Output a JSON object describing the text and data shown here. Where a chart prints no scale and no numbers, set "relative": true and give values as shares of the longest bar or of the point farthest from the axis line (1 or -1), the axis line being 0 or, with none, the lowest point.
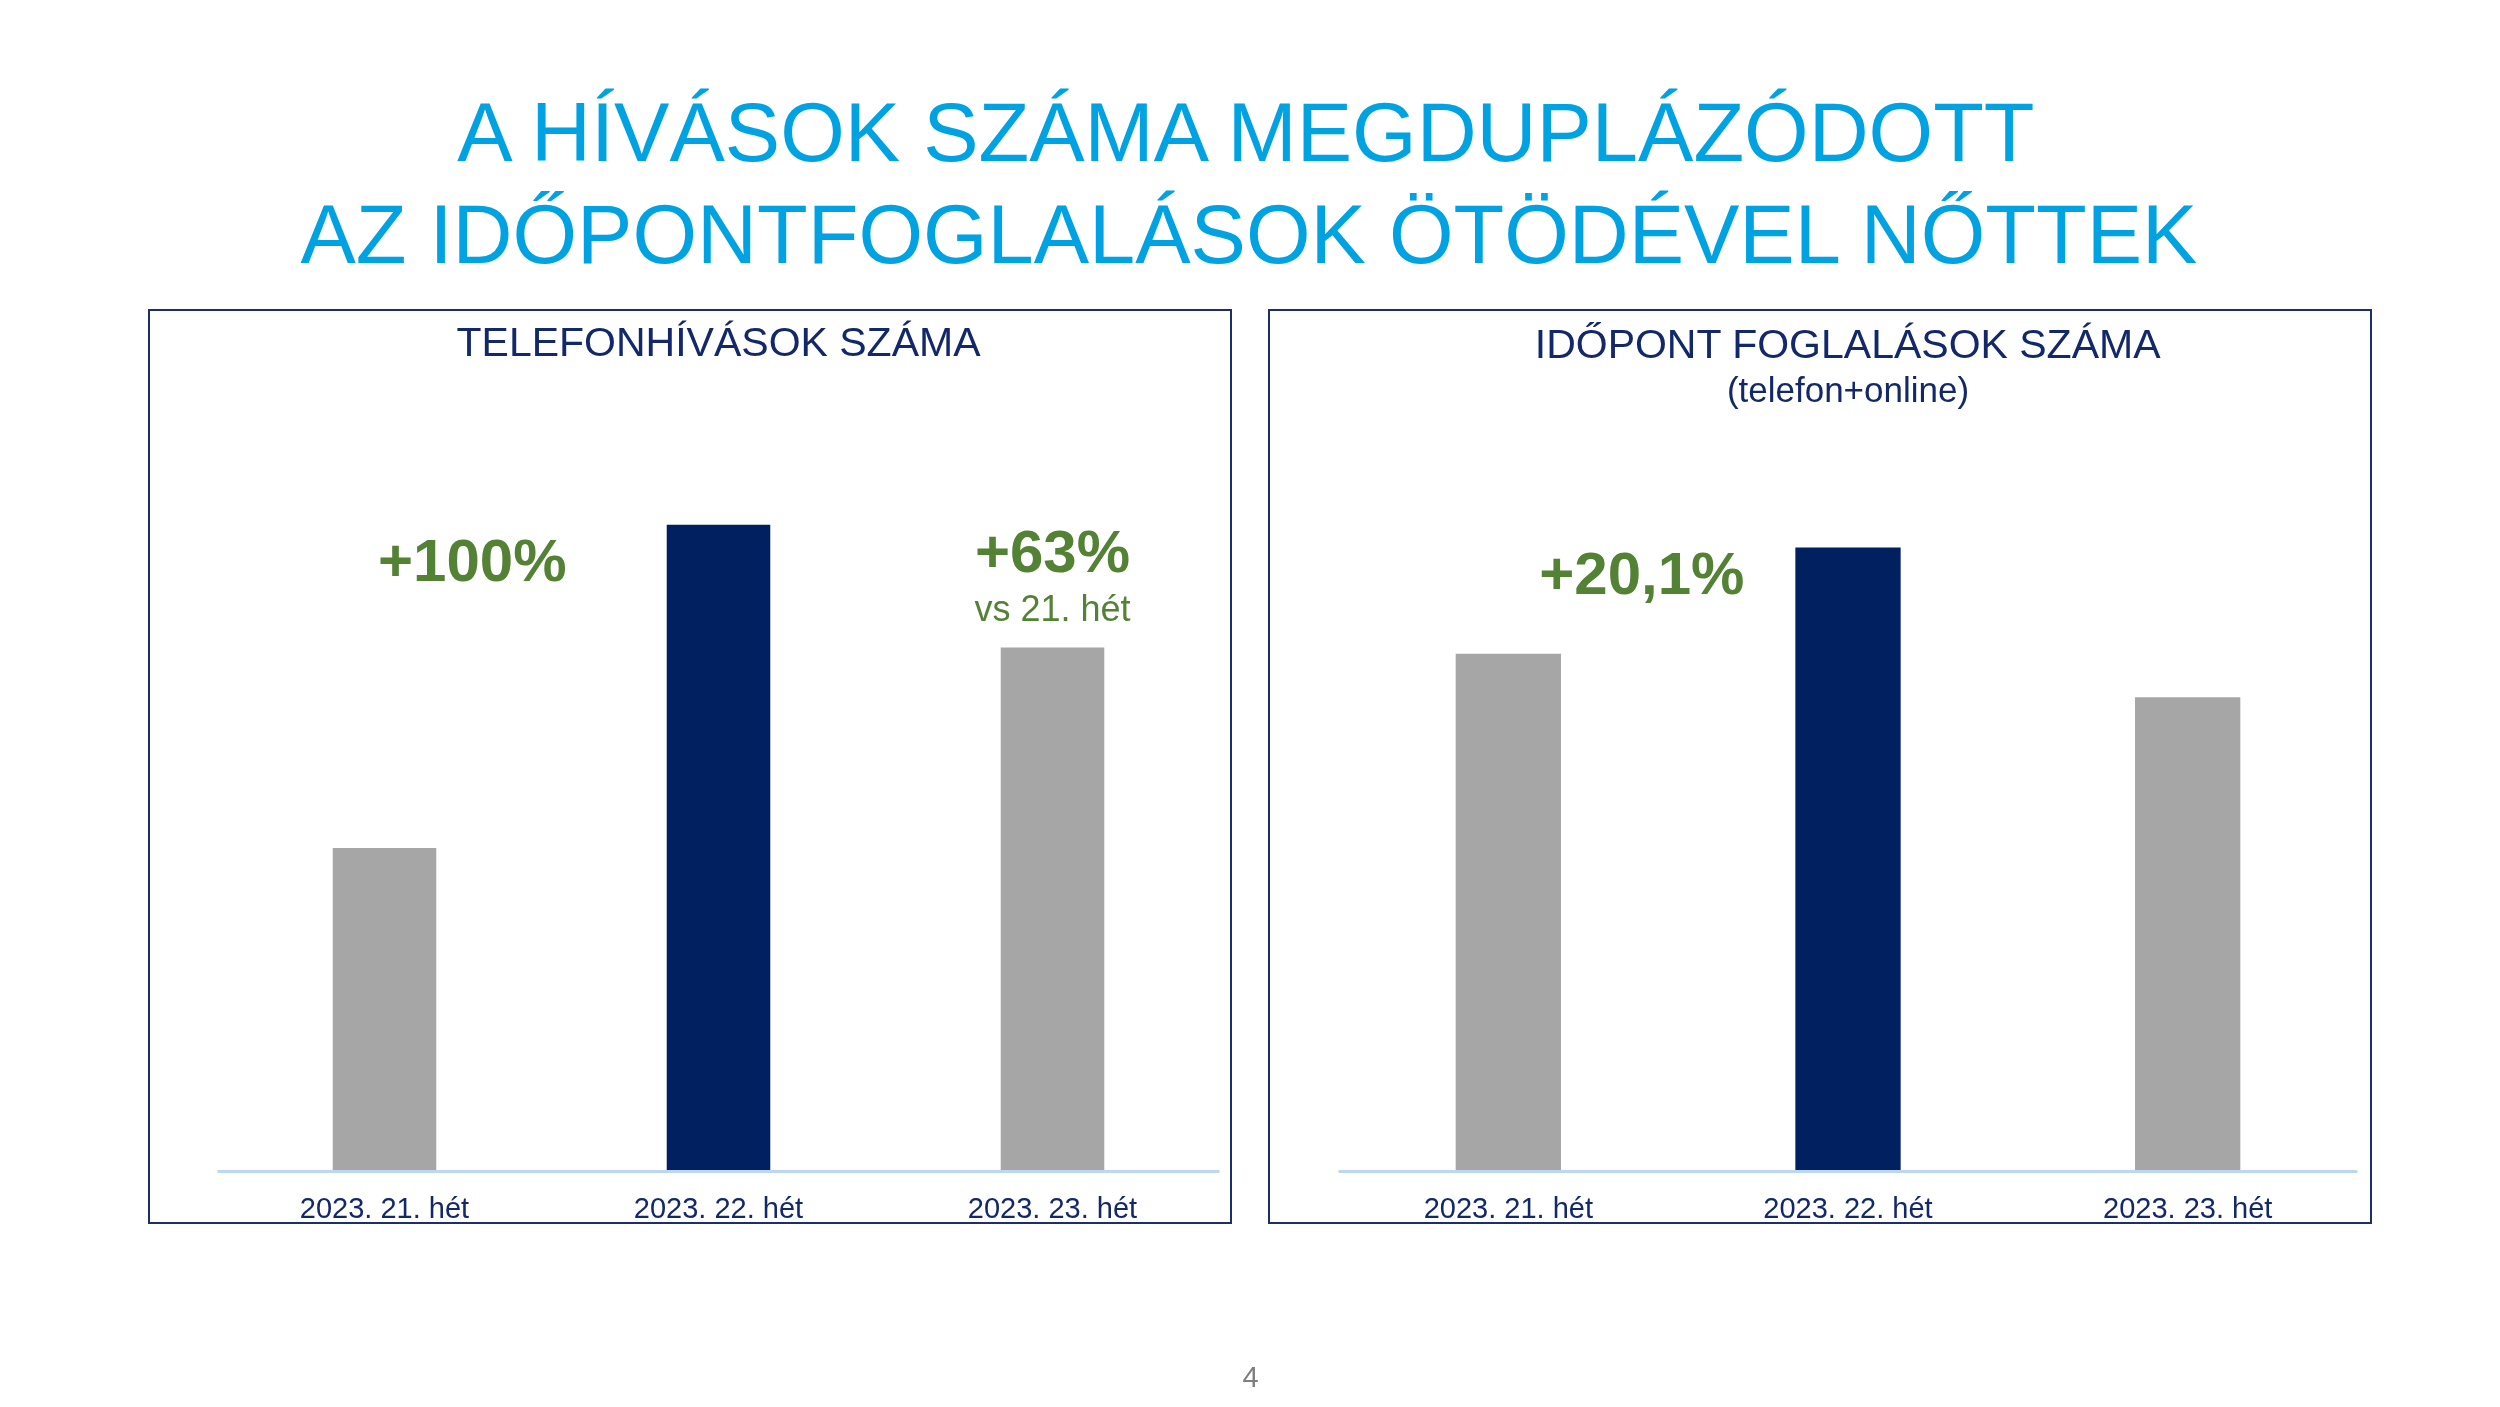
{
  "chart_data": [
    {
      "type": "other",
      "title": "A HÍVÁSOK SZÁMA MEGDUPLÁZÓDOTT\nAZ IDŐPONTFOGLALÁSOK ÖTÖDÉVEL NŐTTEK"
    },
    {
      "type": "bar",
      "title": "TELEFONHÍVÁSOK SZÁMA",
      "categories": [
        "2023. 21. hét",
        "2023. 22. hét",
        "2023. 23. hét"
      ],
      "values": [
        0.5,
        1,
        0.81
      ],
      "colors": [
        "#a6a6a6",
        "#002060",
        "#a6a6a6"
      ],
      "relative": true,
      "annotations": [
        {
          "text": "+100%",
          "x": "2023. 22. hét",
          "y": 1
        },
        {
          "text": "+63%\nvs 21. hét",
          "x": "2023. 23. hét",
          "y": 0.81
        }
      ]
    },
    {
      "type": "bar",
      "title": "IDŐPONT FOGLALÁSOK SZÁMA",
      "subtitle": "(telefon+online)",
      "categories": [
        "2023. 21. hét",
        "2023. 22. hét",
        "2023. 23. hét"
      ],
      "values": [
        0.83,
        1,
        0.76
      ],
      "colors": [
        "#a6a6a6",
        "#002060",
        "#a6a6a6"
      ],
      "relative": true,
      "annotations": [
        {
          "text": "+20,1%",
          "x": "2023. 22. hét",
          "y": 1
        }
      ]
    },
    {
      "type": "other",
      "annotations": [
        "4"
      ]
    }
  ]
}
